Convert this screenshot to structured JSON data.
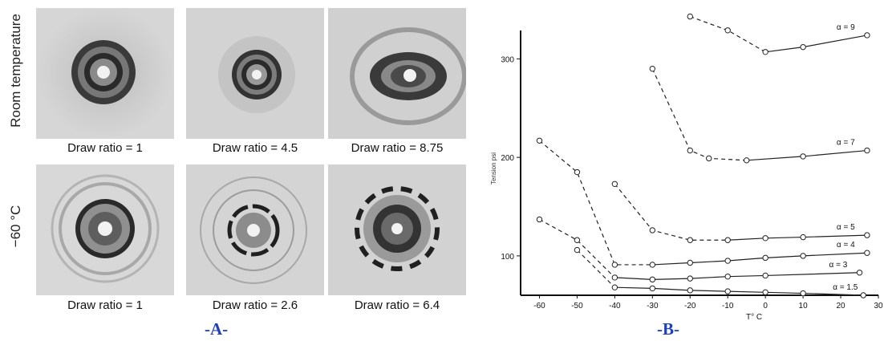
{
  "panelA": {
    "letter": "-A-",
    "row_labels": [
      "Room temperature",
      "−60 °C"
    ],
    "captions": [
      "Draw ratio = 1",
      "Draw ratio = 4.5",
      "Draw ratio = 8.75",
      "Draw ratio = 1",
      "Draw ratio = 2.6",
      "Draw ratio = 6.4"
    ]
  },
  "panelB": {
    "letter": "-B-",
    "chart_data": {
      "type": "line",
      "xlabel": "T° C",
      "ylabel": "Tension psi",
      "xlim": [
        -65,
        30
      ],
      "ylim": [
        60,
        350
      ],
      "x_ticks": [
        -60,
        -50,
        -40,
        -30,
        -20,
        -10,
        0,
        10,
        20,
        30
      ],
      "y_ticks": [
        100,
        200,
        300
      ],
      "series": [
        {
          "name": "α = 9",
          "points": [
            [
              -20,
              343
            ],
            [
              -10,
              329
            ],
            [
              0,
              307
            ],
            [
              10,
              312
            ],
            [
              27,
              324
            ]
          ],
          "dashed_until": 0
        },
        {
          "name": "α = 7",
          "points": [
            [
              -30,
              290
            ],
            [
              -20,
              207
            ],
            [
              -15,
              199
            ],
            [
              -5,
              197
            ],
            [
              10,
              201
            ],
            [
              27,
              207
            ]
          ],
          "dashed_until": -12
        },
        {
          "name": "α = 5",
          "points": [
            [
              -40,
              173
            ],
            [
              -30,
              126
            ],
            [
              -20,
              116
            ],
            [
              -10,
              116
            ],
            [
              0,
              118
            ],
            [
              10,
              119
            ],
            [
              27,
              121
            ]
          ],
          "dashed_until": -17
        },
        {
          "name": "α = 4",
          "points": [
            [
              -60,
              217
            ],
            [
              -50,
              185
            ],
            [
              -40,
              91
            ],
            [
              -30,
              91
            ],
            [
              -20,
              93
            ],
            [
              -10,
              95
            ],
            [
              0,
              98
            ],
            [
              10,
              100
            ],
            [
              27,
              103
            ]
          ],
          "dashed_until": -37
        },
        {
          "name": "α = 3",
          "points": [
            [
              -60,
              137
            ],
            [
              -50,
              116
            ],
            [
              -40,
              78
            ],
            [
              -30,
              76
            ],
            [
              -20,
              77
            ],
            [
              -10,
              79
            ],
            [
              0,
              80
            ],
            [
              25,
              83
            ]
          ],
          "dashed_until": -40
        },
        {
          "name": "α = 1.5",
          "points": [
            [
              -50,
              106
            ],
            [
              -40,
              68
            ],
            [
              -30,
              67
            ],
            [
              -20,
              65
            ],
            [
              -10,
              64
            ],
            [
              0,
              63
            ],
            [
              10,
              62
            ],
            [
              26,
              60
            ]
          ],
          "dashed_until": -40
        }
      ]
    }
  },
  "colors": {
    "panel_letter": "#1f3fbf"
  }
}
